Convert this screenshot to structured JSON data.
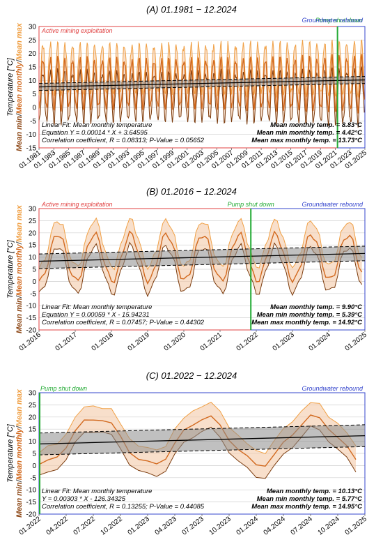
{
  "colors": {
    "mean": "#d2691e",
    "min_line": "#7a3a0c",
    "max_line": "#f0a045",
    "band": "#f3c9a8",
    "fit": "#000000",
    "ci": "#8c8c8c",
    "active_box": "#e04040",
    "rebound_box": "#3344cc",
    "shutdown": "#22aa33",
    "ylabel_dark": "#8b4513",
    "ylabel_orange": "#f0a045"
  },
  "chart_data": [
    {
      "type": "line",
      "title": "(A) 01.1981 − 12.2024",
      "ylabel": {
        "top": "Temperature [°C]",
        "parts": [
          {
            "text": "Mean min",
            "role": "min"
          },
          {
            "text": "/",
            "role": "sep"
          },
          {
            "text": "Mean monthly",
            "role": "mean"
          },
          {
            "text": "/",
            "role": "sep"
          },
          {
            "text": "Mean max",
            "role": "max"
          }
        ]
      },
      "xlim": [
        1981.0,
        2025.0
      ],
      "ylim": [
        -15,
        30
      ],
      "yticks": [
        -15,
        -10,
        -5,
        0,
        5,
        10,
        15,
        20,
        25,
        30
      ],
      "xticks": [
        {
          "x": 1981.0,
          "label": "01.1981"
        },
        {
          "x": 1983.0,
          "label": "01.1983"
        },
        {
          "x": 1985.0,
          "label": "01.1985"
        },
        {
          "x": 1987.0,
          "label": "01.1987"
        },
        {
          "x": 1989.0,
          "label": "01.1989"
        },
        {
          "x": 1991.0,
          "label": "01.1991"
        },
        {
          "x": 1993.0,
          "label": "01.1993"
        },
        {
          "x": 1995.0,
          "label": "01.1995"
        },
        {
          "x": 1997.0,
          "label": "01.1997"
        },
        {
          "x": 1999.0,
          "label": "01.1999"
        },
        {
          "x": 2001.0,
          "label": "01.2001"
        },
        {
          "x": 2003.0,
          "label": "01.2003"
        },
        {
          "x": 2005.0,
          "label": "01.2005"
        },
        {
          "x": 2007.0,
          "label": "01.2007"
        },
        {
          "x": 2009.0,
          "label": "01.2009"
        },
        {
          "x": 2011.0,
          "label": "01.2011"
        },
        {
          "x": 2013.0,
          "label": "01.2013"
        },
        {
          "x": 2015.0,
          "label": "01.2015"
        },
        {
          "x": 2017.0,
          "label": "01.2017"
        },
        {
          "x": 2019.0,
          "label": "01.2019"
        },
        {
          "x": 2021.0,
          "label": "01.2021"
        },
        {
          "x": 2023.0,
          "label": "01.2023"
        },
        {
          "x": 2025.0,
          "label": "01.2025"
        }
      ],
      "shutdown_x": 2021.3,
      "shutdown_label": "Pump shut down",
      "active_label": "Active mining exploitation",
      "rebound_label": "Groundwater rebound",
      "series_model": {
        "start": 1981.0,
        "end": 2025.0,
        "mean_annual": 8.83,
        "amplitude": 9.5,
        "min_offset": -4.4,
        "max_offset": 4.9
      },
      "fit": {
        "slope_per_month": 0.00014,
        "intercept": 3.64595,
        "x0": 1981.0,
        "line": [
          [
            1981.0,
            7.6
          ],
          [
            2025.0,
            10.2
          ]
        ],
        "ci": 1.3
      },
      "annotations": {
        "fit_label": "Linear Fit: Mean monthly temperature",
        "equation": "Equation Y = 0.00014 * X + 3.64595",
        "correlation": "Correlation coefficient, R = 0.08313; P-Value = 0.05652",
        "mean_temp": "Mean monthly temp. = 8.83°C",
        "min_temp": "Mean min monthly temp. = 4.42°C",
        "max_temp": "Mean max monthly temp. = 13.73°C"
      }
    },
    {
      "type": "line",
      "title": "(B) 01.2016 − 12.2024",
      "ylabel": {
        "top": "Temperature [°C]",
        "parts": [
          {
            "text": "Mean min",
            "role": "min"
          },
          {
            "text": "/",
            "role": "sep"
          },
          {
            "text": "Mean monthly",
            "role": "mean"
          },
          {
            "text": "/",
            "role": "sep"
          },
          {
            "text": "Mean max",
            "role": "max"
          }
        ]
      },
      "xlim": [
        2016.0,
        2025.0
      ],
      "ylim": [
        -20,
        30
      ],
      "yticks": [
        -20,
        -15,
        -10,
        -5,
        0,
        5,
        10,
        15,
        20,
        25,
        30
      ],
      "xticks": [
        {
          "x": 2016.0,
          "label": "01.2016"
        },
        {
          "x": 2017.0,
          "label": "01.2017"
        },
        {
          "x": 2018.0,
          "label": "01.2018"
        },
        {
          "x": 2019.0,
          "label": "01.2019"
        },
        {
          "x": 2020.0,
          "label": "01.2020"
        },
        {
          "x": 2021.0,
          "label": "01.2021"
        },
        {
          "x": 2022.0,
          "label": "01.2022"
        },
        {
          "x": 2023.0,
          "label": "01.2023"
        },
        {
          "x": 2024.0,
          "label": "01.2024"
        },
        {
          "x": 2025.0,
          "label": "01.2025"
        }
      ],
      "shutdown_x": 2021.85,
      "shutdown_label": "Pump shut down",
      "active_label": "Active mining exploitation",
      "rebound_label": "Groundwater rebound",
      "series_model": {
        "start": 2016.0,
        "end": 2025.0,
        "mean_annual": 9.9,
        "amplitude": 10.0,
        "min_offset": -4.5,
        "max_offset": 5.0
      },
      "fit": {
        "slope_per_month": 0.00059,
        "intercept": -15.94231,
        "x0": 2016.0,
        "line": [
          [
            2016.0,
            8.3
          ],
          [
            2025.0,
            11.5
          ]
        ],
        "ci": 3.0
      },
      "annotations": {
        "fit_label": "Linear Fit: Mean monthly temperature",
        "equation": "Equation Y = 0.00059 * X - 15.94231",
        "correlation": "Correlation coefficient, R = 0.07457; P-Value = 0.44302",
        "mean_temp": "Mean monthly temp. = 9.90°C",
        "min_temp": "Mean min monthly temp. = 5.39°C",
        "max_temp": "Mean max monthly temp. = 14.92°C"
      }
    },
    {
      "type": "line",
      "title": "(C) 01.2022 − 12.2024",
      "ylabel": {
        "top": "Temperature [°C]",
        "parts": [
          {
            "text": "Mean min",
            "role": "min"
          },
          {
            "text": "/",
            "role": "sep"
          },
          {
            "text": "Mean monthly",
            "role": "mean"
          },
          {
            "text": "/",
            "role": "sep"
          },
          {
            "text": "Mean max",
            "role": "max"
          }
        ]
      },
      "xlim": [
        2022.0,
        2025.0
      ],
      "ylim": [
        -20,
        30
      ],
      "yticks": [
        -20,
        -15,
        -10,
        -5,
        0,
        5,
        10,
        15,
        20,
        25,
        30
      ],
      "xticks": [
        {
          "x": 2022.0,
          "label": "01.2022"
        },
        {
          "x": 2022.25,
          "label": "04.2022"
        },
        {
          "x": 2022.5,
          "label": "07.2022"
        },
        {
          "x": 2022.75,
          "label": "10.2022"
        },
        {
          "x": 2023.0,
          "label": "01.2023"
        },
        {
          "x": 2023.25,
          "label": "04.2023"
        },
        {
          "x": 2023.5,
          "label": "07.2023"
        },
        {
          "x": 2023.75,
          "label": "10.2023"
        },
        {
          "x": 2024.0,
          "label": "01.2024"
        },
        {
          "x": 2024.25,
          "label": "04.2024"
        },
        {
          "x": 2024.5,
          "label": "07.2024"
        },
        {
          "x": 2024.75,
          "label": "10.2024"
        },
        {
          "x": 2025.0,
          "label": "01.2025"
        }
      ],
      "shutdown_x": null,
      "shutdown_label": "Pump shut down",
      "active_label": "",
      "rebound_label": "Groundwater rebound",
      "series_model": {
        "start": 2022.0,
        "end": 2025.0,
        "mean_annual": 10.13,
        "amplitude": 10.0,
        "min_offset": -4.4,
        "max_offset": 4.8
      },
      "fit": {
        "slope_per_month": 0.00303,
        "intercept": -126.34325,
        "x0": 2022.0,
        "line": [
          [
            2022.0,
            8.9
          ],
          [
            2025.0,
            12.3
          ]
        ],
        "ci": 4.5
      },
      "annotations": {
        "fit_label": "Linear Fit: Mean monthly temperature",
        "equation": "Y = 0.00303 * X - 126.34325",
        "correlation": "Correlation coefficient, R = 0.13255; P-Value = 0.44085",
        "mean_temp": "Mean monthly temp. = 10.13°C",
        "min_temp": "Mean min monthly temp. = 5.77°C",
        "max_temp": "Mean max monthly temp. = 14.95°C"
      }
    }
  ]
}
